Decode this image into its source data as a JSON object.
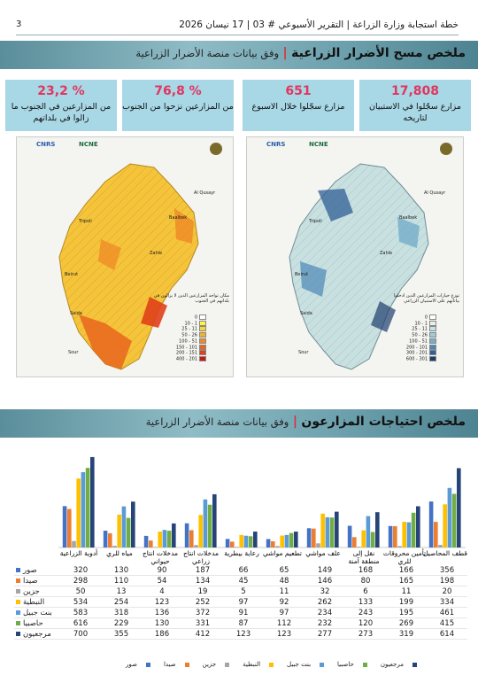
{
  "header": {
    "page_number": "3",
    "title": "خطة استجابة وزارة الزراعة | التقرير الأسبوعي # 03 | 17 نيسان 2026"
  },
  "section1": {
    "title": "ملخص مسح الأضرار الزراعية",
    "separator": "|",
    "subtitle": "وفق بيانات منصة الأضرار الزراعية"
  },
  "cards": [
    {
      "value": "17,808",
      "label": "مزارع سجّلوا في الاستبيان لتاريخه"
    },
    {
      "value": "651",
      "label": "مزارع سجّلوا خلال الاسبوع"
    },
    {
      "value": "76,8 %",
      "label": "من المزارعين نزحوا من الجنوب"
    },
    {
      "value": "23,2 %",
      "label": "من المزارعين في الجنوب ما زالوا في بلداتهم"
    }
  ],
  "maps": {
    "logos": [
      "CNRS",
      "NCNE"
    ],
    "left": {
      "legend_title": "مكان تواجد المزارعين الذين لا يزالون في بلداتهم في الجنوب",
      "bins": [
        "0",
        "1 - 10",
        "11 - 25",
        "26 - 50",
        "51 - 100",
        "101 - 150",
        "151 - 200",
        "201 - 400"
      ],
      "colors": [
        "#ffffff",
        "#fff34a",
        "#f7d531",
        "#f3b22b",
        "#ee8a26",
        "#e9661f",
        "#e0401a",
        "#c81a14"
      ],
      "places": [
        "Tripoli",
        "Beirut",
        "Saida",
        "Sour",
        "Zahle",
        "Baalbek",
        "Al Qusayr"
      ]
    },
    "right": {
      "legend_title": "توزع خيارات المزارعين الذين ادخلوا بياناتهم على الاستبيان الزراعي",
      "bins": [
        "0",
        "1 - 10",
        "11 - 25",
        "26 - 50",
        "51 - 100",
        "101 - 200",
        "201 - 300",
        "301 - 600"
      ],
      "colors": [
        "#ffffff",
        "#e6f1ea",
        "#c9e0e0",
        "#9fcbd7",
        "#74aecb",
        "#4c87b6",
        "#2f5f96",
        "#1c3d6d"
      ],
      "places": [
        "Tripoli",
        "Beirut",
        "Saida",
        "Sour",
        "Zahle",
        "Baalbek",
        "Al Qusayr"
      ]
    }
  },
  "section2": {
    "title": "ملخص احتياجات المزارعون",
    "separator": "|",
    "subtitle": "وفق بيانات منصة الأضرار الزراعية"
  },
  "chart_data": {
    "type": "bar",
    "categories": [
      "قطف المحاصيل",
      "تأمين محروقات للري",
      "نقل إلى منطقة آمنة",
      "علف مواشي",
      "تطعيم مواشي",
      "رعاية بيطرية",
      "مدخلات انتاج زراعي",
      "مدخلات انتاج حيواني",
      "مياه للري",
      "أدوية الزراعية"
    ],
    "series": [
      {
        "name": "صور",
        "color": "#4472c4",
        "values": [
          356,
          166,
          168,
          149,
          65,
          66,
          187,
          90,
          130,
          320
        ]
      },
      {
        "name": "صيدا",
        "color": "#ed7d31",
        "values": [
          198,
          165,
          80,
          146,
          48,
          45,
          134,
          54,
          110,
          298
        ]
      },
      {
        "name": "جزين",
        "color": "#a5a5a5",
        "values": [
          20,
          11,
          6,
          32,
          11,
          5,
          19,
          4,
          13,
          50
        ]
      },
      {
        "name": "النبطية",
        "color": "#ffc000",
        "values": [
          334,
          199,
          133,
          262,
          92,
          97,
          252,
          123,
          254,
          534
        ]
      },
      {
        "name": "بنت جبيل",
        "color": "#5b9bd5",
        "values": [
          461,
          195,
          243,
          234,
          97,
          91,
          372,
          136,
          318,
          583
        ]
      },
      {
        "name": "حاصبيا",
        "color": "#70ad47",
        "values": [
          415,
          269,
          120,
          232,
          112,
          87,
          331,
          130,
          229,
          616
        ]
      },
      {
        "name": "مرجعيون",
        "color": "#264478",
        "values": [
          614,
          319,
          273,
          277,
          123,
          123,
          412,
          186,
          355,
          700
        ]
      }
    ],
    "ylim": [
      0,
      720
    ]
  }
}
